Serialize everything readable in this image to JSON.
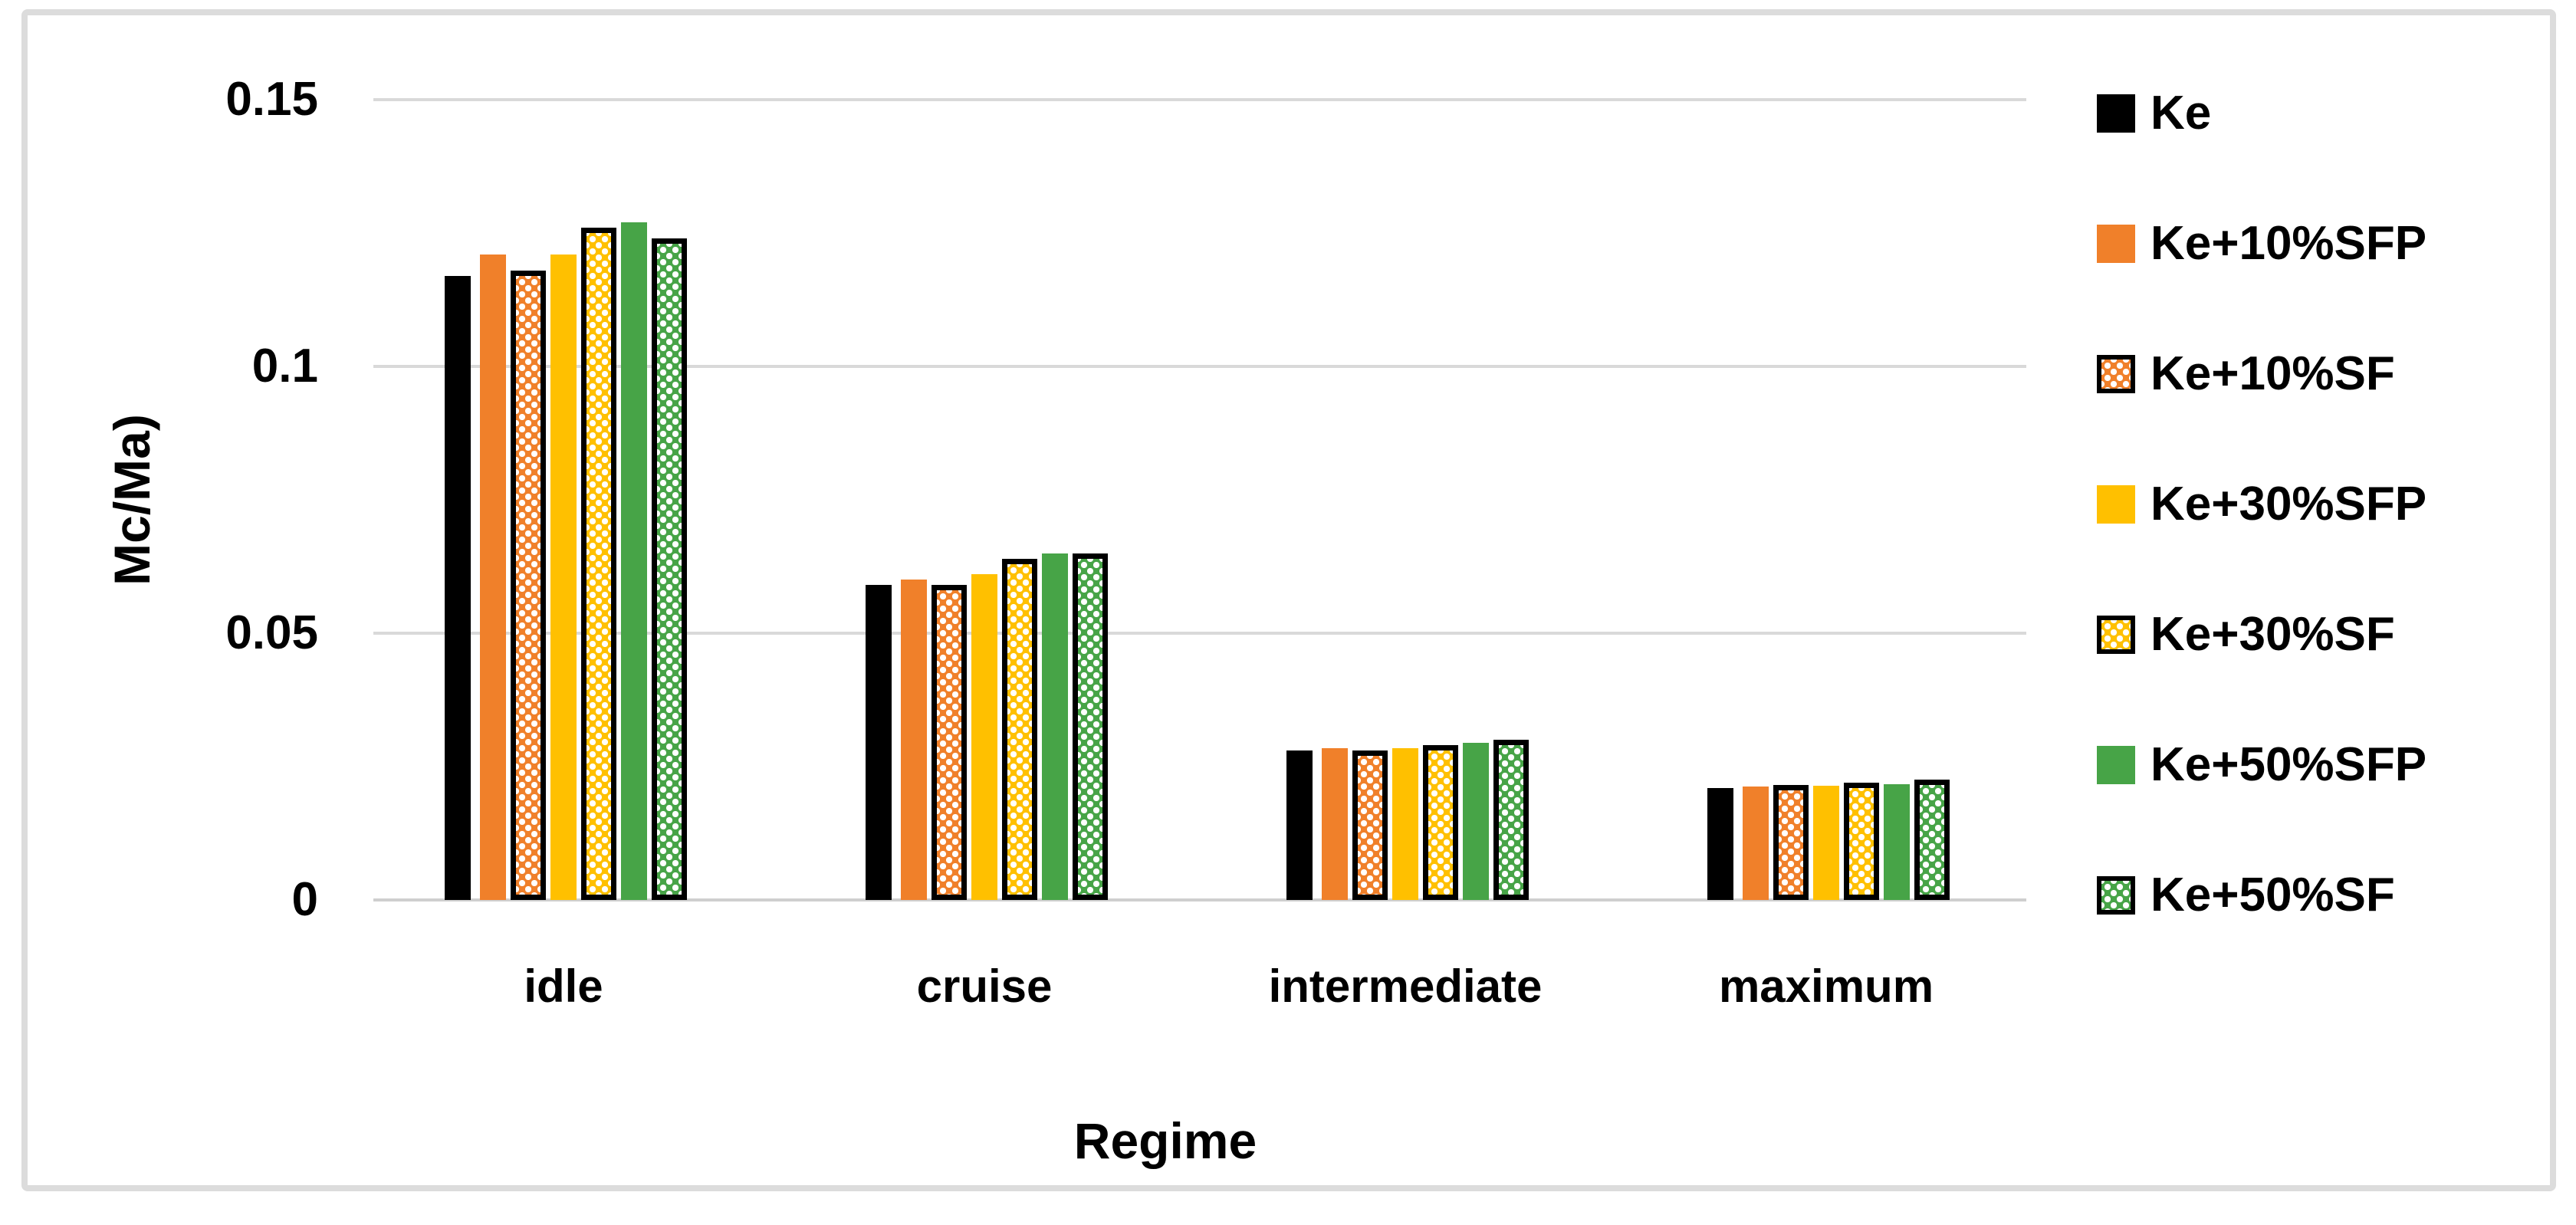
{
  "chart_data": {
    "type": "bar",
    "title": "",
    "xlabel": "Regime",
    "ylabel": "Mc/Ma)",
    "categories": [
      "idle",
      "cruise",
      "intermediate",
      "maximum"
    ],
    "series": [
      {
        "name": "Ke",
        "color": "#000000",
        "pattern": "solid",
        "values": [
          0.117,
          0.059,
          0.028,
          0.021
        ]
      },
      {
        "name": "Ke+10%SFP",
        "color": "#F0802A",
        "pattern": "solid",
        "values": [
          0.121,
          0.06,
          0.0285,
          0.0213
        ]
      },
      {
        "name": "Ke+10%SF",
        "color": "#F0802A",
        "pattern": "dots",
        "values": [
          0.118,
          0.059,
          0.028,
          0.0215
        ]
      },
      {
        "name": "Ke+30%SFP",
        "color": "#FFC000",
        "pattern": "solid",
        "values": [
          0.121,
          0.061,
          0.0285,
          0.0214
        ]
      },
      {
        "name": "Ke+30%SF",
        "color": "#FFC000",
        "pattern": "dots",
        "values": [
          0.126,
          0.064,
          0.029,
          0.022
        ]
      },
      {
        "name": "Ke+50%SFP",
        "color": "#47A447",
        "pattern": "solid",
        "values": [
          0.127,
          0.065,
          0.0295,
          0.0217
        ]
      },
      {
        "name": "Ke+50%SF",
        "color": "#47A447",
        "pattern": "dots",
        "values": [
          0.124,
          0.065,
          0.03,
          0.0225
        ]
      }
    ],
    "y_ticks": [
      {
        "label": "0.15",
        "value": 0.15
      },
      {
        "label": "0.1",
        "value": 0.1
      },
      {
        "label": "0.05",
        "value": 0.05
      },
      {
        "label": "0",
        "value": 0.0
      }
    ],
    "ylim": [
      0,
      0.15
    ],
    "grid": true,
    "legend_position": "right"
  },
  "colors": {
    "background": "#ffffff",
    "frame_border": "#dcdcdc",
    "gridline": "#d9d9d9",
    "baseline": "#cfcfcf",
    "text": "#000000",
    "dot_pattern_fill": "#ffffff"
  }
}
